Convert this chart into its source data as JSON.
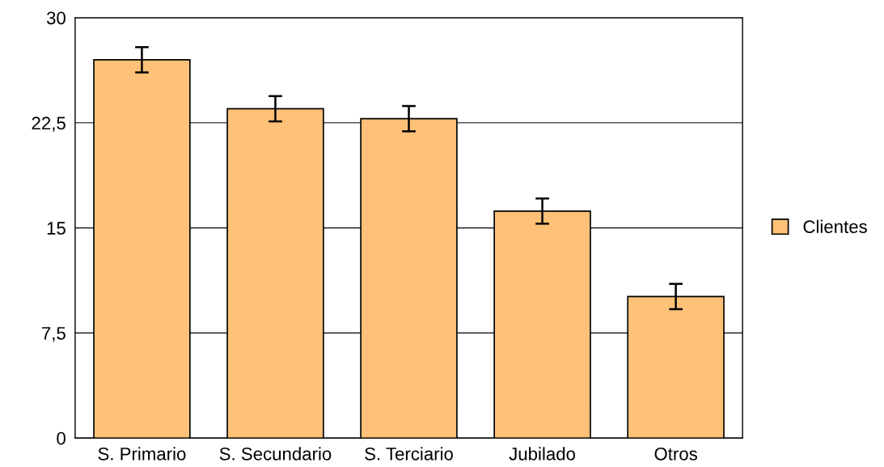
{
  "chart_data": {
    "type": "bar",
    "categories": [
      "S. Primario",
      "S. Secundario",
      "S. Terciario",
      "Jubilado",
      "Otros"
    ],
    "series": [
      {
        "name": "Clientes",
        "color": "#ffc177",
        "values": [
          27.0,
          23.5,
          22.8,
          16.2,
          10.1
        ],
        "errors": [
          0.9,
          0.9,
          0.9,
          0.9,
          0.9
        ]
      }
    ],
    "ylim": [
      0,
      30
    ],
    "yticks": [
      0,
      {
        "value": 7.5,
        "label": "7,5"
      },
      15,
      {
        "value": 22.5,
        "label": "22,5"
      },
      30
    ],
    "grid": "y",
    "legend": "right"
  }
}
